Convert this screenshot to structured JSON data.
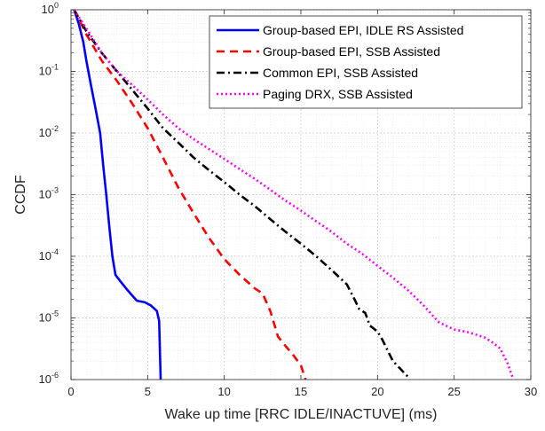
{
  "chart_data": {
    "type": "line",
    "xlabel": "Wake up time [RRC IDLE/INACTUVE] (ms)",
    "ylabel": "CCDF",
    "xlim": [
      0,
      30
    ],
    "ylim": [
      1e-06,
      1
    ],
    "yscale": "log",
    "grid": true,
    "minor_grid": true,
    "legend_position": "top-right",
    "x_ticks": [
      0,
      5,
      10,
      15,
      20,
      25,
      30
    ],
    "x_tick_labels": [
      "0",
      "5",
      "10",
      "15",
      "20",
      "25",
      "30"
    ],
    "y_ticks": [
      1e-06,
      1e-05,
      0.0001,
      0.001,
      0.01,
      0.1,
      1
    ],
    "y_tick_labels": [
      {
        "base": "10",
        "exp": "-6"
      },
      {
        "base": "10",
        "exp": "-5"
      },
      {
        "base": "10",
        "exp": "-4"
      },
      {
        "base": "10",
        "exp": "-3"
      },
      {
        "base": "10",
        "exp": "-2"
      },
      {
        "base": "10",
        "exp": "-1"
      },
      {
        "base": "10",
        "exp": "0"
      }
    ],
    "series": [
      {
        "name": "Group-based EPI, IDLE RS Assisted",
        "color": "#0000ff",
        "dash": "solid",
        "points": [
          [
            0.2,
            1.0
          ],
          [
            0.5,
            0.6
          ],
          [
            0.8,
            0.3
          ],
          [
            1.0,
            0.15
          ],
          [
            1.3,
            0.06
          ],
          [
            1.6,
            0.025
          ],
          [
            1.9,
            0.01
          ],
          [
            2.1,
            0.003
          ],
          [
            2.3,
            0.001
          ],
          [
            2.5,
            0.0003
          ],
          [
            2.7,
            0.0001
          ],
          [
            2.9,
            5e-05
          ],
          [
            3.2,
            4e-05
          ],
          [
            3.6,
            3e-05
          ],
          [
            4.0,
            2.3e-05
          ],
          [
            4.3,
            1.9e-05
          ],
          [
            4.8,
            1.8e-05
          ],
          [
            5.2,
            1.6e-05
          ],
          [
            5.6,
            1.3e-05
          ],
          [
            5.75,
            9e-06
          ],
          [
            5.8,
            3e-06
          ],
          [
            5.85,
            1e-06
          ]
        ]
      },
      {
        "name": "Group-based EPI, SSB Assisted",
        "color": "#ff0000",
        "dash": "dashed",
        "points": [
          [
            0.2,
            1.0
          ],
          [
            1.0,
            0.4
          ],
          [
            2.0,
            0.15
          ],
          [
            3.0,
            0.07
          ],
          [
            4.0,
            0.03
          ],
          [
            5.0,
            0.012
          ],
          [
            6.0,
            0.004
          ],
          [
            7.0,
            0.0013
          ],
          [
            8.0,
            0.0005
          ],
          [
            9.0,
            0.0002
          ],
          [
            10.0,
            9e-05
          ],
          [
            11.0,
            5e-05
          ],
          [
            12.0,
            3e-05
          ],
          [
            12.5,
            2.5e-05
          ],
          [
            13.0,
            1.3e-05
          ],
          [
            13.5,
            5e-06
          ],
          [
            14.0,
            3.5e-06
          ],
          [
            14.5,
            2.5e-06
          ],
          [
            15.0,
            1.7e-06
          ],
          [
            15.3,
            1e-06
          ]
        ]
      },
      {
        "name": "Common EPI, SSB Assisted",
        "color": "#000000",
        "dash": "dashdot",
        "points": [
          [
            0.2,
            1.0
          ],
          [
            1.0,
            0.45
          ],
          [
            2.0,
            0.2
          ],
          [
            3.0,
            0.1
          ],
          [
            4.0,
            0.05
          ],
          [
            5.0,
            0.025
          ],
          [
            6.0,
            0.012
          ],
          [
            7.0,
            0.007
          ],
          [
            8.0,
            0.004
          ],
          [
            9.0,
            0.0025
          ],
          [
            10.0,
            0.0016
          ],
          [
            11.0,
            0.001
          ],
          [
            12.0,
            0.00065
          ],
          [
            13.0,
            0.0004
          ],
          [
            14.0,
            0.00025
          ],
          [
            15.0,
            0.00016
          ],
          [
            16.0,
            0.0001
          ],
          [
            17.0,
            6e-05
          ],
          [
            18.0,
            3.5e-05
          ],
          [
            18.5,
            2e-05
          ],
          [
            18.8,
            1.4e-05
          ],
          [
            19.2,
            1.2e-05
          ],
          [
            19.5,
            7.5e-06
          ],
          [
            20.0,
            6e-06
          ],
          [
            20.3,
            4.5e-06
          ],
          [
            21.0,
            2e-06
          ],
          [
            22.0,
            1.1e-06
          ]
        ]
      },
      {
        "name": "Paging DRX, SSB Assisted",
        "color": "#ff00ff",
        "dash": "dotted",
        "points": [
          [
            0.2,
            1.0
          ],
          [
            1.0,
            0.5
          ],
          [
            2.0,
            0.2
          ],
          [
            3.0,
            0.1
          ],
          [
            4.0,
            0.06
          ],
          [
            5.0,
            0.035
          ],
          [
            6.0,
            0.02
          ],
          [
            7.0,
            0.012
          ],
          [
            8.0,
            0.008
          ],
          [
            9.0,
            0.0055
          ],
          [
            10.0,
            0.0038
          ],
          [
            11.0,
            0.0026
          ],
          [
            12.0,
            0.0018
          ],
          [
            13.0,
            0.0012
          ],
          [
            14.0,
            0.0008
          ],
          [
            15.0,
            0.00055
          ],
          [
            16.0,
            0.00037
          ],
          [
            17.0,
            0.00025
          ],
          [
            18.0,
            0.00016
          ],
          [
            19.0,
            0.00011
          ],
          [
            20.0,
            7e-05
          ],
          [
            21.0,
            4.5e-05
          ],
          [
            22.0,
            2.8e-05
          ],
          [
            23.0,
            1.6e-05
          ],
          [
            24.0,
            8.5e-06
          ],
          [
            25.0,
            6.5e-06
          ],
          [
            26.0,
            5.8e-06
          ],
          [
            27.0,
            4.8e-06
          ],
          [
            27.5,
            4e-06
          ],
          [
            28.0,
            3.2e-06
          ],
          [
            28.5,
            1.8e-06
          ],
          [
            28.8,
            1.1e-06
          ]
        ]
      }
    ]
  }
}
